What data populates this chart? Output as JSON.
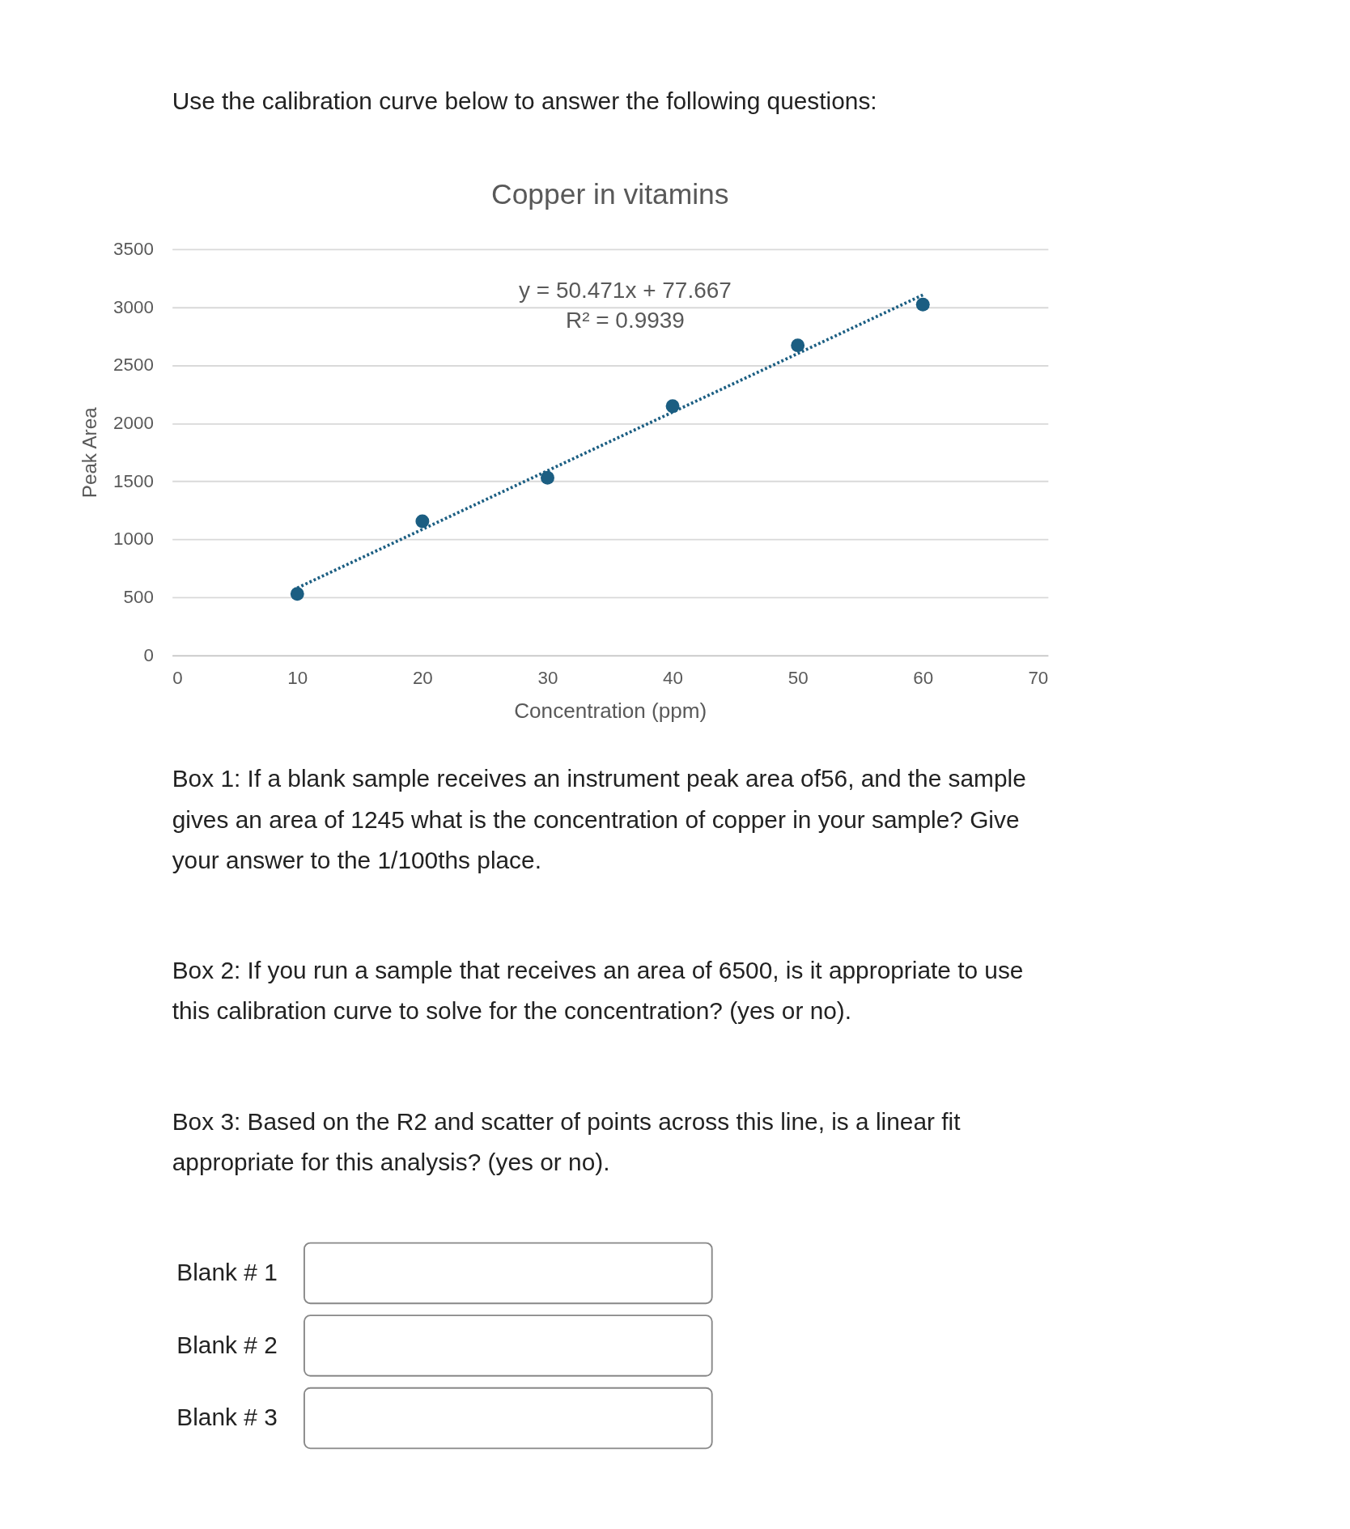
{
  "chart_data": {
    "type": "scatter",
    "title": "Copper in vitamins",
    "xlabel": "Concentration (ppm)",
    "ylabel": "Peak Area",
    "x": [
      10,
      20,
      30,
      40,
      50,
      60
    ],
    "series": [
      {
        "color": "#1b5e82",
        "marker": "circle",
        "values": [
          531,
          1156,
          1531,
          2148,
          2672,
          3023
        ]
      },
      {
        "type": "line",
        "color": "#1b5e82",
        "line_style": "dotted",
        "x": [
          10,
          60
        ],
        "values": [
          582,
          3106
        ]
      }
    ],
    "xlim": [
      0,
      70
    ],
    "xticks": [
      0,
      10,
      20,
      30,
      40,
      50,
      60,
      70
    ],
    "ylim": [
      0,
      3500
    ],
    "yticks": [
      0,
      500,
      1000,
      1500,
      2000,
      2500,
      3000,
      3500
    ],
    "grid": "y",
    "annotations": [
      "y = 50.471x + 77.667",
      "R² = 0.9939",
      "Use the calibration curve below to answer the following questions:",
      "Box 1: If a blank sample receives an instrument peak area of56, and the sample gives an area of 1245 what is the concentration of copper in your sample? Give your answer to the 1/100ths place.",
      "Box 2: If you run a sample that receives an area of 6500, is it appropriate to use this calibration curve to solve for the concentration? (yes or no).",
      "Box 3: Based on the R2 and scatter of points across this line, is a linear fit appropriate for this analysis? (yes or no).",
      "Blank # 1",
      "Blank # 2",
      "Blank # 3"
    ]
  }
}
